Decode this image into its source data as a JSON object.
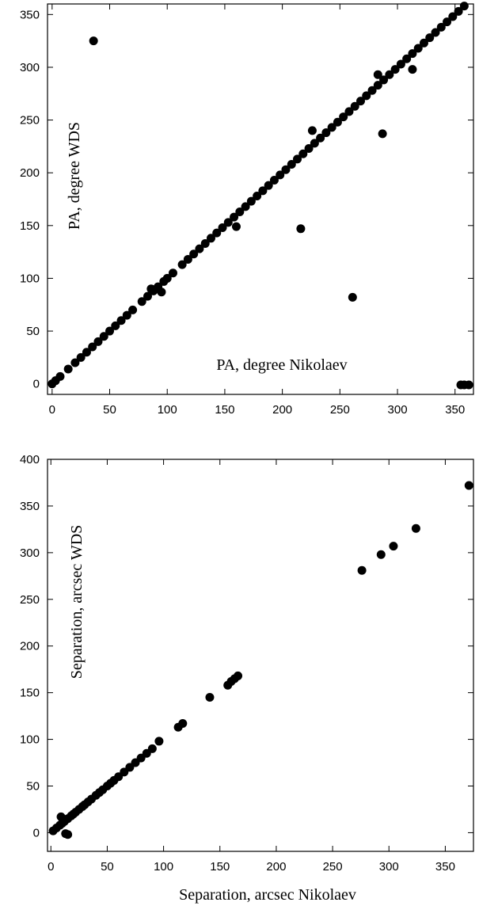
{
  "chart_data": [
    {
      "type": "scatter",
      "title": "",
      "xlabel": "PA, degree Nikolaev",
      "ylabel": "PA, degree WDS",
      "xlim": [
        -4,
        366
      ],
      "ylim": [
        -10,
        360
      ],
      "xticks": [
        0,
        50,
        100,
        150,
        200,
        250,
        300,
        350
      ],
      "yticks": [
        0,
        50,
        100,
        150,
        200,
        250,
        300,
        350
      ],
      "grid": false,
      "legend": "none",
      "x": [
        0,
        3,
        7,
        14,
        20,
        25,
        30,
        35,
        40,
        45,
        50,
        55,
        60,
        65,
        70,
        78,
        83,
        88,
        92,
        97,
        100,
        105,
        113,
        118,
        123,
        128,
        133,
        138,
        143,
        148,
        153,
        158,
        163,
        168,
        173,
        178,
        183,
        188,
        193,
        198,
        203,
        208,
        213,
        218,
        223,
        228,
        233,
        238,
        243,
        248,
        253,
        258,
        263,
        268,
        273,
        278,
        283,
        288,
        293,
        298,
        303,
        308,
        313,
        318,
        323,
        328,
        333,
        338,
        343,
        348,
        353,
        358,
        36,
        86,
        95,
        160,
        216,
        226,
        261,
        283,
        287,
        313,
        355,
        358,
        362
      ],
      "y": [
        0,
        3,
        7,
        14,
        20,
        25,
        30,
        35,
        40,
        45,
        50,
        55,
        60,
        65,
        70,
        78,
        83,
        88,
        92,
        97,
        100,
        105,
        113,
        118,
        123,
        128,
        133,
        138,
        143,
        148,
        153,
        158,
        163,
        168,
        173,
        178,
        183,
        188,
        193,
        198,
        203,
        208,
        213,
        218,
        223,
        228,
        233,
        238,
        243,
        248,
        253,
        258,
        263,
        268,
        273,
        278,
        283,
        288,
        293,
        298,
        303,
        308,
        313,
        318,
        323,
        328,
        333,
        338,
        343,
        348,
        353,
        358,
        325,
        90,
        87,
        149,
        147,
        240,
        82,
        293,
        237,
        298,
        -1,
        -1,
        -1
      ]
    },
    {
      "type": "scatter",
      "title": "",
      "xlabel": "Separation, arcsec Nikolaev",
      "ylabel": "Separation, arcsec WDS",
      "xlim": [
        -3,
        375
      ],
      "ylim": [
        -20,
        400
      ],
      "xticks": [
        0,
        50,
        100,
        150,
        200,
        250,
        300,
        350
      ],
      "yticks": [
        0,
        50,
        100,
        150,
        200,
        250,
        300,
        350,
        400
      ],
      "grid": false,
      "legend": "none",
      "x": [
        2,
        5,
        8,
        10,
        12,
        15,
        18,
        20,
        22,
        25,
        28,
        30,
        33,
        36,
        40,
        43,
        46,
        50,
        53,
        56,
        60,
        65,
        70,
        75,
        80,
        85,
        90,
        96,
        113,
        117,
        141,
        157,
        160,
        163,
        166,
        9,
        13,
        15,
        276,
        293,
        304,
        324,
        371
      ],
      "y": [
        2,
        5,
        8,
        10,
        12,
        15,
        18,
        20,
        22,
        25,
        28,
        30,
        33,
        36,
        40,
        43,
        46,
        50,
        53,
        56,
        60,
        65,
        70,
        75,
        80,
        85,
        90,
        98,
        113,
        117,
        145,
        158,
        162,
        165,
        168,
        17,
        -1,
        -2,
        281,
        298,
        307,
        326,
        372
      ]
    }
  ]
}
